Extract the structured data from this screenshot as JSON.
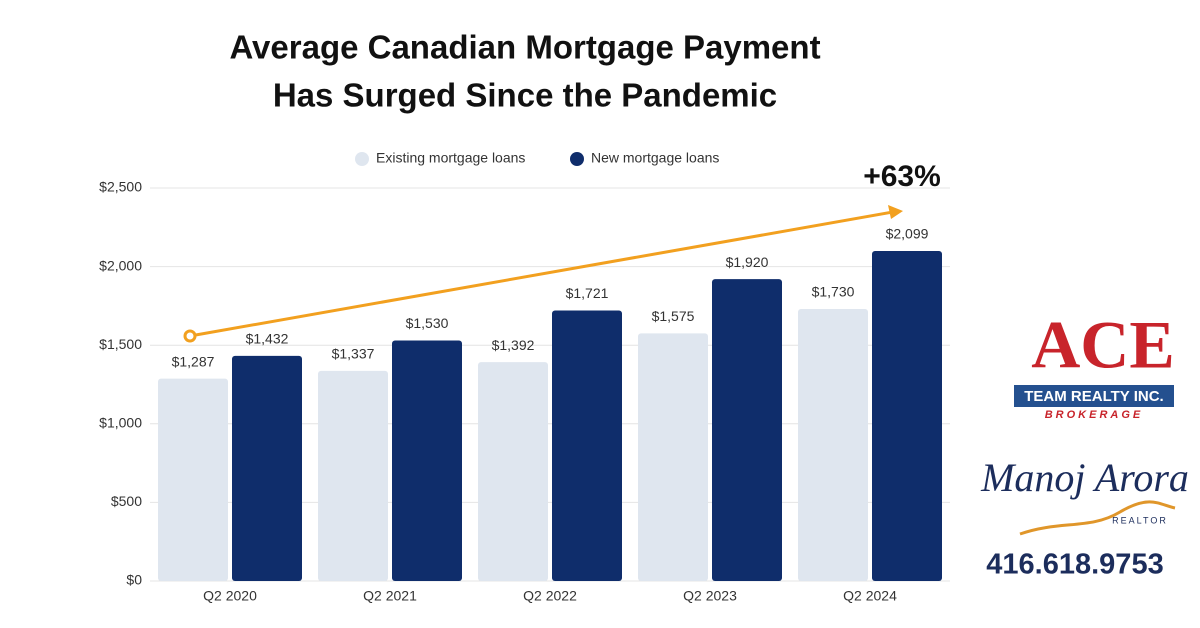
{
  "chart_data": {
    "type": "bar",
    "title": [
      "Average Canadian Mortgage Payment",
      "Has Surged Since the Pandemic"
    ],
    "categories": [
      "Q2 2020",
      "Q2 2021",
      "Q2 2022",
      "Q2 2023",
      "Q2 2024"
    ],
    "series": [
      {
        "name": "Existing mortgage loans",
        "color": "#dfe6ef",
        "values": [
          1287,
          1337,
          1392,
          1575,
          1730
        ],
        "value_labels": [
          "$1,287",
          "$1,337",
          "$1,392",
          "$1,575",
          "$1,730"
        ]
      },
      {
        "name": "New mortgage loans",
        "color": "#0f2d6b",
        "values": [
          1432,
          1530,
          1721,
          1920,
          2099
        ],
        "value_labels": [
          "$1,432",
          "$1,530",
          "$1,721",
          "$1,920",
          "$2,099"
        ]
      }
    ],
    "ylim": [
      0,
      2500
    ],
    "yticks": [
      {
        "value": 0,
        "label": "$0"
      },
      {
        "value": 500,
        "label": "$500"
      },
      {
        "value": 1000,
        "label": "$1,000"
      },
      {
        "value": 1500,
        "label": "$1,500"
      },
      {
        "value": 2000,
        "label": "$2,000"
      },
      {
        "value": 2500,
        "label": "$2,500"
      }
    ],
    "grid": true,
    "legend": "top",
    "annotation": "+63%"
  },
  "branding": {
    "logo": "ACE",
    "company": "TEAM REALTY INC.",
    "division": "BROKERAGE",
    "agent": "Manoj Arora",
    "role": "REALTOR",
    "phone": "416.618.9753"
  }
}
